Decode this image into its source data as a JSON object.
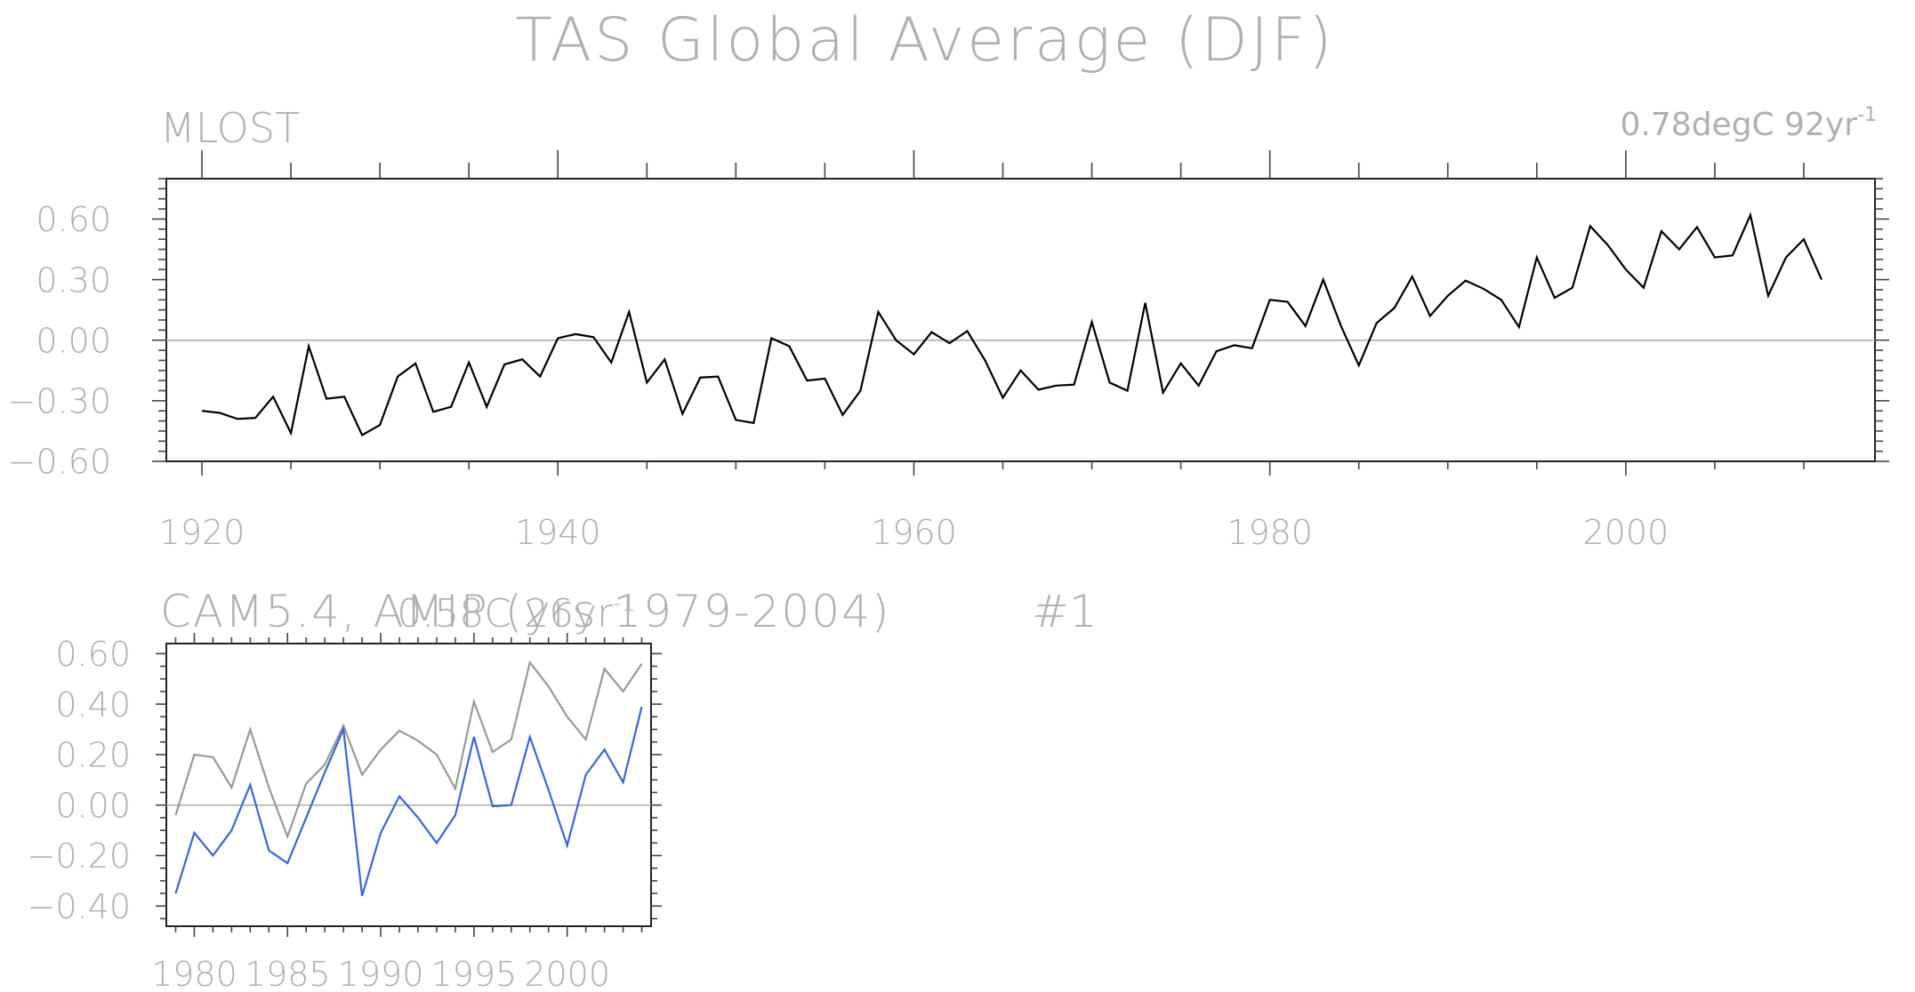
{
  "figure": {
    "title": "TAS Global Average (DJF)"
  },
  "chart_data": [
    {
      "type": "line",
      "panel_label": "MLOST",
      "trend_label": "0.78degC 92yr",
      "trend_label_sup": "-1",
      "x": [
        1920,
        1921,
        1922,
        1923,
        1924,
        1925,
        1926,
        1927,
        1928,
        1929,
        1930,
        1931,
        1932,
        1933,
        1934,
        1935,
        1936,
        1937,
        1938,
        1939,
        1940,
        1941,
        1942,
        1943,
        1944,
        1945,
        1946,
        1947,
        1948,
        1949,
        1950,
        1951,
        1952,
        1953,
        1954,
        1955,
        1956,
        1957,
        1958,
        1959,
        1960,
        1961,
        1962,
        1963,
        1964,
        1965,
        1966,
        1967,
        1968,
        1969,
        1970,
        1971,
        1972,
        1973,
        1974,
        1975,
        1976,
        1977,
        1978,
        1979,
        1980,
        1981,
        1982,
        1983,
        1984,
        1985,
        1986,
        1987,
        1988,
        1989,
        1990,
        1991,
        1992,
        1993,
        1994,
        1995,
        1996,
        1997,
        1998,
        1999,
        2000,
        2001,
        2002,
        2003,
        2004,
        2005,
        2006,
        2007,
        2008,
        2009,
        2010,
        2011
      ],
      "series": [
        {
          "color": "#000000",
          "values": [
            -0.35,
            -0.36,
            -0.39,
            -0.385,
            -0.28,
            -0.46,
            -0.03,
            -0.29,
            -0.28,
            -0.47,
            -0.42,
            -0.18,
            -0.115,
            -0.355,
            -0.33,
            -0.11,
            -0.33,
            -0.12,
            -0.095,
            -0.18,
            0.01,
            0.03,
            0.015,
            -0.11,
            0.14,
            -0.21,
            -0.095,
            -0.365,
            -0.185,
            -0.18,
            -0.395,
            -0.41,
            0.01,
            -0.03,
            -0.2,
            -0.19,
            -0.37,
            -0.25,
            0.14,
            0.0,
            -0.07,
            0.04,
            -0.015,
            0.045,
            -0.1,
            -0.285,
            -0.15,
            -0.245,
            -0.225,
            -0.22,
            0.09,
            -0.21,
            -0.25,
            0.185,
            -0.26,
            -0.115,
            -0.225,
            -0.055,
            -0.025,
            -0.04,
            0.2,
            0.19,
            0.07,
            0.3,
            0.07,
            -0.125,
            0.085,
            0.16,
            0.315,
            0.12,
            0.22,
            0.295,
            0.255,
            0.2,
            0.065,
            0.41,
            0.21,
            0.26,
            0.565,
            0.47,
            0.35,
            0.26,
            0.54,
            0.45,
            0.56,
            0.41,
            0.42,
            0.62,
            0.22,
            0.41,
            0.5,
            0.3
          ]
        }
      ],
      "xlim": [
        1918,
        2014
      ],
      "ylim": [
        -0.6,
        0.8
      ],
      "xticks": [
        1920,
        1940,
        1960,
        1980,
        2000
      ],
      "xtick_labels": [
        "1920",
        "1940",
        "1960",
        "1980",
        "2000"
      ],
      "yticks": [
        -0.6,
        -0.3,
        0.0,
        0.3,
        0.6
      ],
      "ytick_labels": [
        "−0.60",
        "−0.30",
        "0.00",
        "0.30",
        "0.60"
      ],
      "zero_line": true,
      "grid": false
    },
    {
      "type": "line",
      "panel_label": "CAM5.4, AMIP (yrs 1979-2004)",
      "panel_label_tail": "#1",
      "trend_label": "0.58C 26yr",
      "trend_label_sup": "-1",
      "x": [
        1979,
        1980,
        1981,
        1982,
        1983,
        1984,
        1985,
        1986,
        1987,
        1988,
        1989,
        1990,
        1991,
        1992,
        1993,
        1994,
        1995,
        1996,
        1997,
        1998,
        1999,
        2000,
        2001,
        2002,
        2003,
        2004
      ],
      "series": [
        {
          "color": "#999999",
          "values": [
            -0.04,
            0.2,
            0.19,
            0.07,
            0.3,
            0.07,
            -0.125,
            0.085,
            0.16,
            0.315,
            0.12,
            0.22,
            0.295,
            0.255,
            0.2,
            0.065,
            0.41,
            0.21,
            0.26,
            0.565,
            0.47,
            0.35,
            0.26,
            0.54,
            0.45,
            0.56
          ]
        },
        {
          "color": "#3c64d8",
          "values": [
            -0.35,
            -0.11,
            -0.2,
            -0.1,
            0.08,
            -0.18,
            -0.23,
            -0.05,
            0.13,
            0.3,
            -0.36,
            -0.11,
            0.035,
            -0.05,
            -0.15,
            -0.04,
            0.27,
            -0.005,
            0.0,
            0.27,
            0.06,
            -0.16,
            0.12,
            0.22,
            0.09,
            0.39
          ]
        }
      ],
      "xlim": [
        1978.5,
        2004.5
      ],
      "ylim": [
        -0.48,
        0.64
      ],
      "xticks": [
        1980,
        1985,
        1990,
        1995,
        2000
      ],
      "xtick_labels": [
        "1980",
        "1985",
        "1990",
        "1995",
        "2000"
      ],
      "yticks": [
        -0.4,
        -0.2,
        0.0,
        0.2,
        0.4,
        0.6
      ],
      "ytick_labels": [
        "−0.40",
        "−0.20",
        "0.00",
        "0.20",
        "0.40",
        "0.60"
      ],
      "zero_line": true,
      "grid": false
    }
  ]
}
